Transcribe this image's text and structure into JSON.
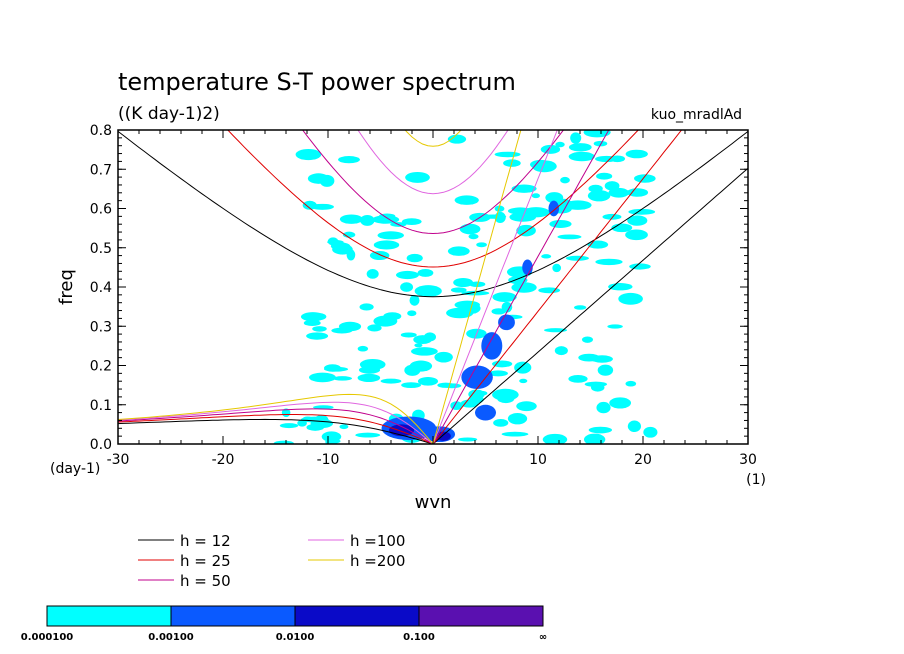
{
  "chart_data": {
    "type": "heatmap",
    "title": "temperature S-T power spectrum",
    "units": "((K day-1)2)",
    "annotation": "kuo_mradlAd",
    "xlabel": "wvn",
    "ylabel": "freq",
    "x_unit": "(1)",
    "y_unit": "(day-1)",
    "xlim": [
      -30,
      30
    ],
    "ylim": [
      0,
      0.8
    ],
    "xticks": [
      -30,
      -20,
      -10,
      0,
      10,
      20,
      30
    ],
    "yticks": [
      0.0,
      0.1,
      0.2,
      0.3,
      0.4,
      0.5,
      0.6,
      0.7,
      0.8
    ],
    "xtick_labels": [
      "-30",
      "-20",
      "-10",
      "0",
      "10",
      "20",
      "30"
    ],
    "ytick_labels": [
      "0.0",
      "0.1",
      "0.2",
      "0.3",
      "0.4",
      "0.5",
      "0.6",
      "0.7",
      "0.8"
    ],
    "colorbar": {
      "levels": [
        "0.000100",
        "0.00100",
        "0.0100",
        "0.100",
        "∞"
      ],
      "colors": [
        "#00ffff",
        "#0a5aff",
        "#0a0ac8",
        "#5a10b0"
      ]
    },
    "dispersion_curves": [
      {
        "label": "h = 12",
        "h": 12,
        "color": "#000000"
      },
      {
        "label": "h = 25",
        "h": 25,
        "color": "#e00000"
      },
      {
        "label": "h = 50",
        "h": 50,
        "color": "#c0008c"
      },
      {
        "label": "h =100",
        "h": 100,
        "color": "#e066e0"
      },
      {
        "label": "h =200",
        "h": 200,
        "color": "#e6c800"
      }
    ],
    "blobs": [
      {
        "x": -2.3,
        "y": 0.04,
        "rx": 2.6,
        "ry": 0.03,
        "level": 1
      },
      {
        "x": 0.6,
        "y": 0.025,
        "rx": 1.5,
        "ry": 0.02,
        "level": 1
      },
      {
        "x": 4.2,
        "y": 0.17,
        "rx": 1.5,
        "ry": 0.03,
        "level": 1
      },
      {
        "x": 5.6,
        "y": 0.25,
        "rx": 1.0,
        "ry": 0.035,
        "level": 1
      },
      {
        "x": 7.0,
        "y": 0.31,
        "rx": 0.8,
        "ry": 0.02,
        "level": 1
      },
      {
        "x": 5.0,
        "y": 0.08,
        "rx": 1.0,
        "ry": 0.02,
        "level": 1
      },
      {
        "x": 9.0,
        "y": 0.45,
        "rx": 0.5,
        "ry": 0.02,
        "level": 1
      },
      {
        "x": 11.5,
        "y": 0.6,
        "rx": 0.5,
        "ry": 0.02,
        "level": 1
      },
      {
        "x": -3.0,
        "y": 0.035,
        "rx": 1.2,
        "ry": 0.015,
        "level": 2
      },
      {
        "x": 1.0,
        "y": 0.02,
        "rx": 0.7,
        "ry": 0.012,
        "level": 2
      }
    ]
  }
}
